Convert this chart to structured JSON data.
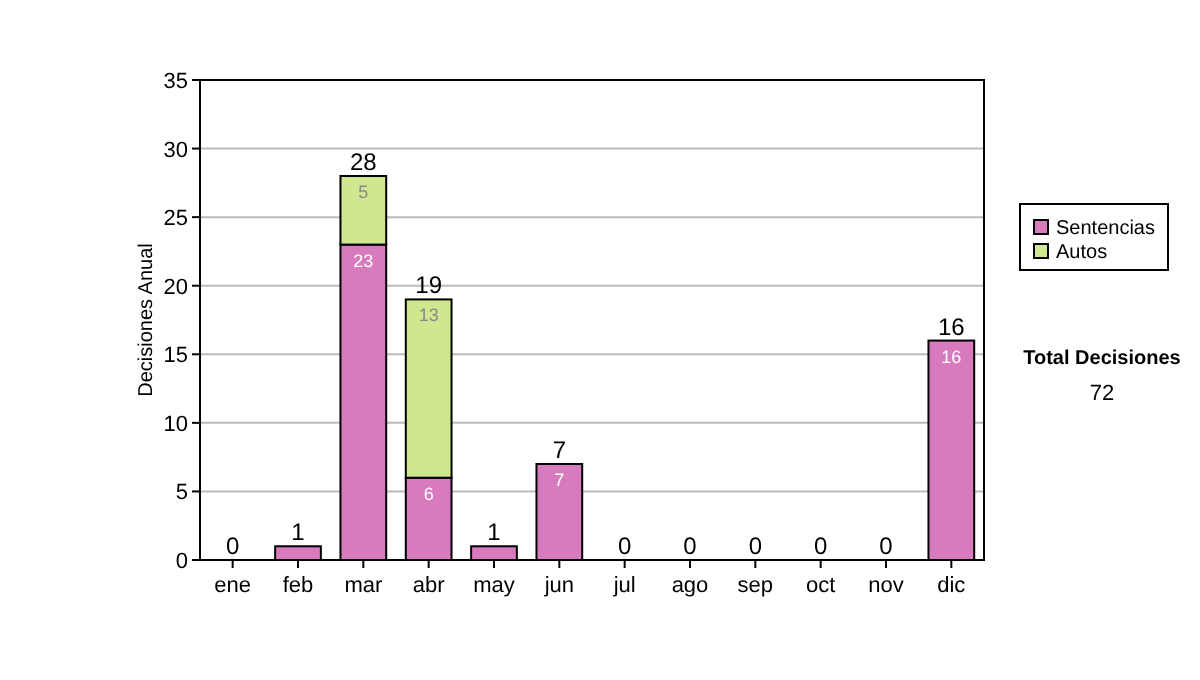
{
  "chart_data": {
    "type": "bar",
    "stacked": true,
    "ylabel": "Decisiones Anual",
    "categories": [
      "ene",
      "feb",
      "mar",
      "abr",
      "may",
      "jun",
      "jul",
      "ago",
      "sep",
      "oct",
      "nov",
      "dic"
    ],
    "series": [
      {
        "name": "Sentencias",
        "color": "#d77bbe",
        "values": [
          0,
          1,
          23,
          6,
          1,
          7,
          0,
          0,
          0,
          0,
          0,
          16
        ],
        "value_labels": [
          null,
          null,
          "23",
          "6",
          null,
          "7",
          null,
          null,
          null,
          null,
          null,
          "16"
        ]
      },
      {
        "name": "Autos",
        "color": "#d1e78f",
        "values": [
          0,
          0,
          5,
          13,
          0,
          0,
          0,
          0,
          0,
          0,
          0,
          0
        ],
        "value_labels": [
          null,
          null,
          "5",
          "13",
          null,
          null,
          null,
          null,
          null,
          null,
          null,
          null
        ]
      }
    ],
    "totals": [
      "0",
      "1",
      "28",
      "19",
      "1",
      "7",
      "0",
      "0",
      "0",
      "0",
      "0",
      "16"
    ],
    "ylim": [
      0,
      35
    ],
    "yticks": [
      0,
      5,
      10,
      15,
      20,
      25,
      30,
      35
    ],
    "grid": "y",
    "legend": "right",
    "annotations": [
      "Total Decisiones",
      "72"
    ]
  }
}
